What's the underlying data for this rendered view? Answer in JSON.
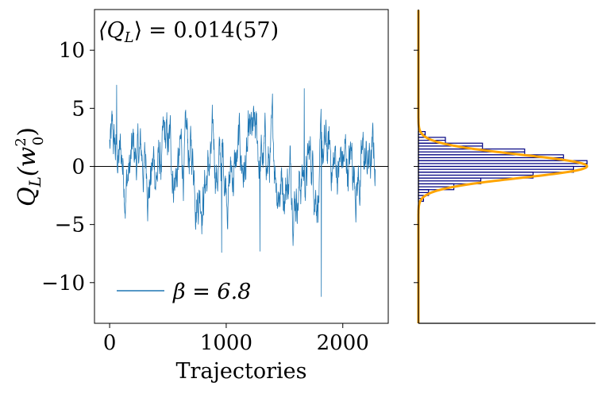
{
  "chart_data": [
    {
      "type": "line",
      "annotation": "⟨Q_L⟩ = 0.014(57)",
      "annotation_parts": {
        "symbol": "⟨Q",
        "sub": "L",
        "close": "⟩",
        "value": "= 0.014(57)"
      },
      "xlabel": "Trajectories",
      "ylabel_parts": {
        "Q": "Q",
        "sub": "L",
        "open": "(w",
        "sup": "2",
        "sub0": "0",
        "close": ")"
      },
      "xlim": [
        -130,
        2390
      ],
      "ylim": [
        -13.5,
        13.5
      ],
      "x_ticks": [
        0,
        1000,
        2000
      ],
      "x_tick_labels": [
        "0",
        "1000",
        "2000"
      ],
      "y_ticks": [
        10,
        5,
        0,
        -5,
        -10
      ],
      "y_tick_labels": [
        "10",
        "5",
        "0",
        "−5",
        "−10"
      ],
      "reference_line_y": 0,
      "series": [
        {
          "name": "β = 6.8",
          "color": "#1f77b4",
          "x_range": [
            0,
            2280
          ],
          "sample_count": 1140,
          "approx_min": -11.2,
          "approx_max": 7.0,
          "approx_mean": 0.014
        }
      ],
      "legend": {
        "label": "β = 6.8",
        "placement": "lower-left"
      },
      "grid": false
    },
    {
      "type": "bar",
      "orientation": "horizontal",
      "shares_y_axis": true,
      "bin_edges": [
        -3,
        -2.5,
        -2,
        -1.5,
        -1,
        -0.5,
        0,
        0.5,
        1,
        1.5,
        2,
        2.5,
        3
      ],
      "counts": [
        0.03,
        0.06,
        0.21,
        0.37,
        0.68,
        0.92,
        1.0,
        0.86,
        0.63,
        0.38,
        0.16,
        0.04
      ],
      "fit_curve": {
        "type": "gaussian",
        "mean": 0.014,
        "sigma": 1.0,
        "amplitude": 1.0,
        "color": "#ffa500"
      },
      "bar_edge_color": "#000080",
      "xlim": [
        0,
        1.05
      ],
      "grid": false
    }
  ]
}
